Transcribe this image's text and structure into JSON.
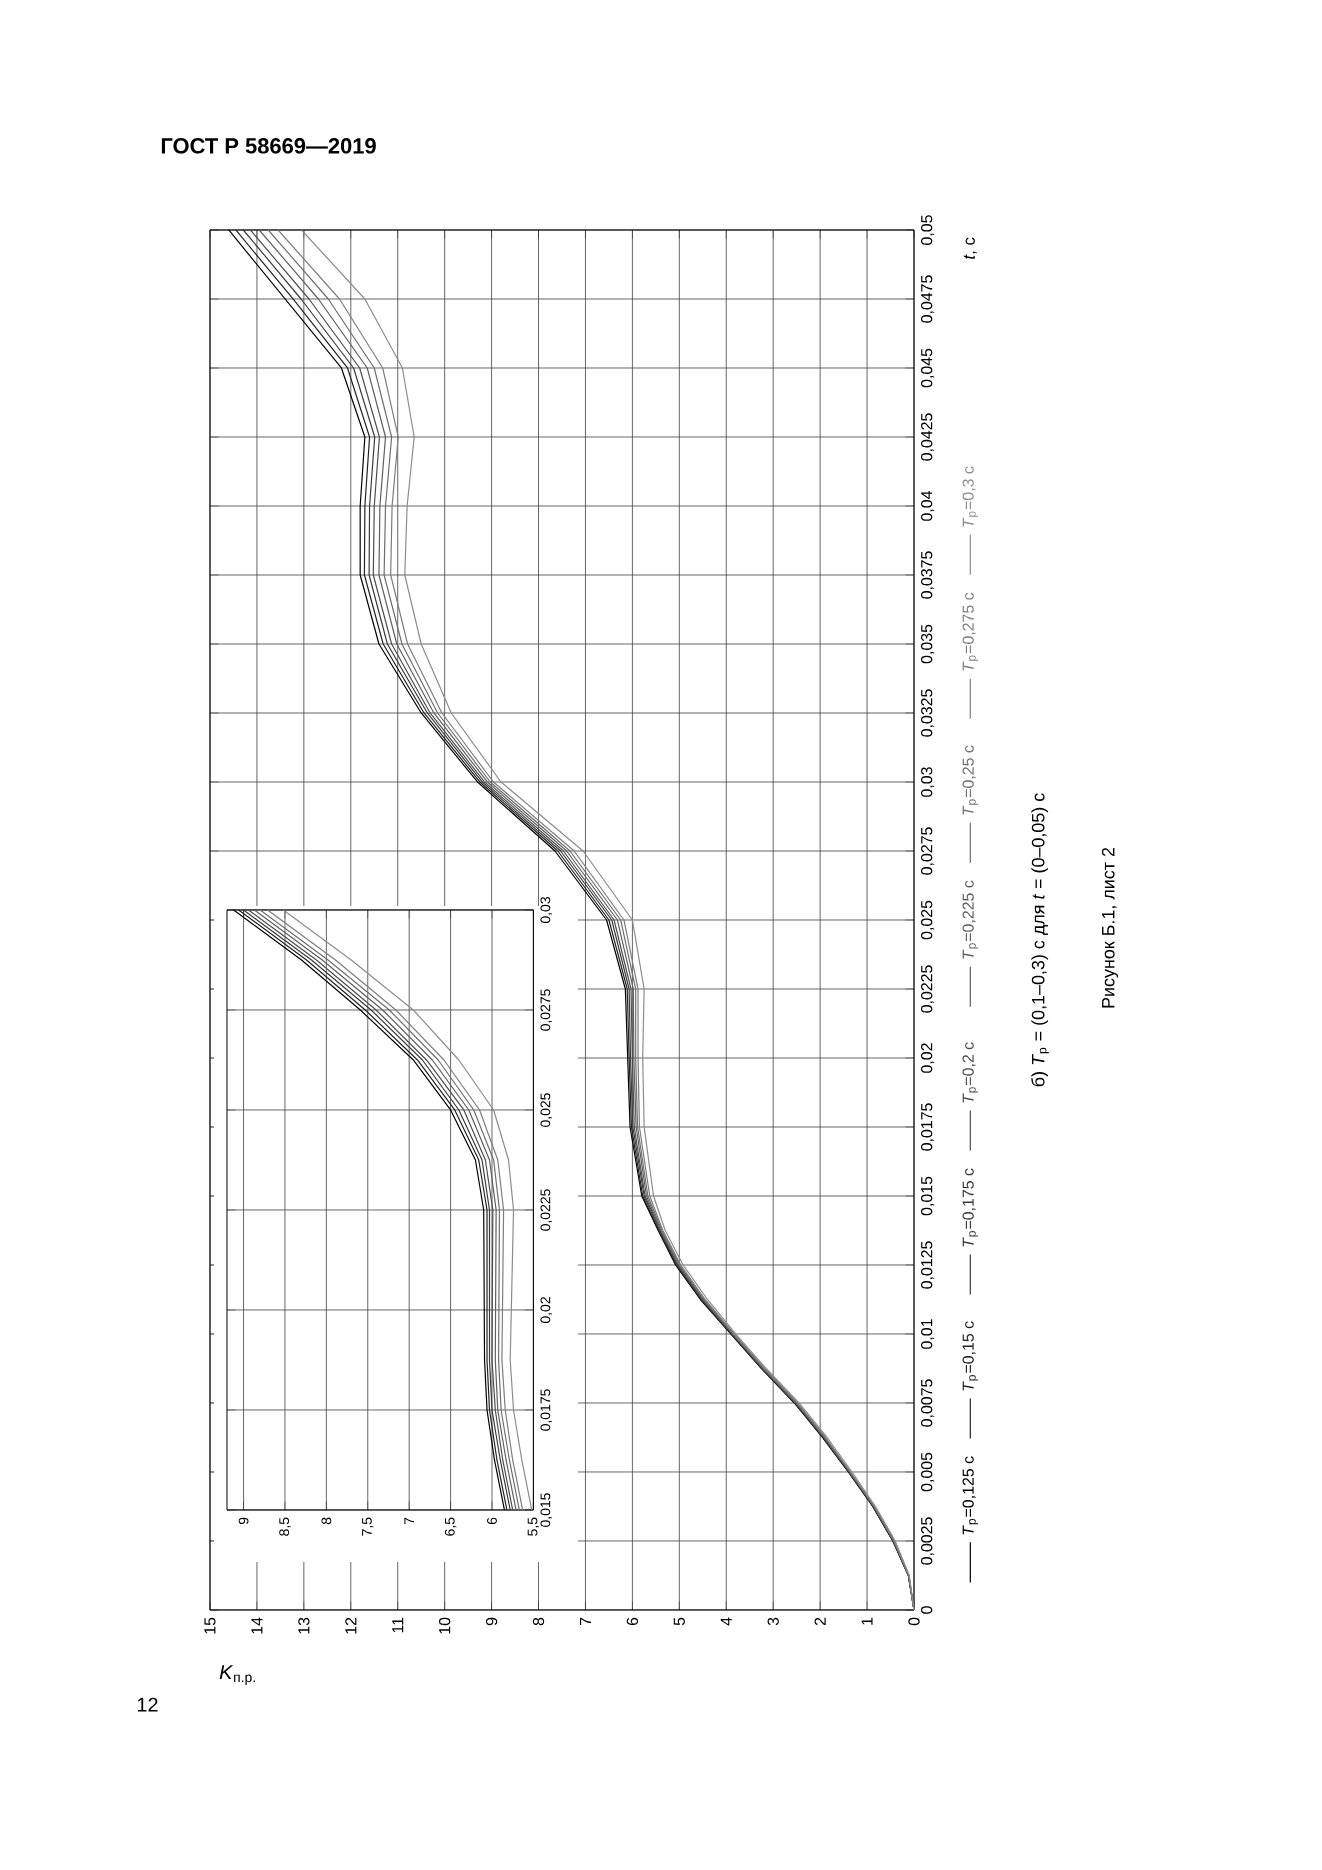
{
  "chart_data": [
    {
      "type": "line",
      "xlabel": "*K*$_{п.р.}$",
      "ylabel": "*t*, с",
      "annotations": [
        "б) *T*$_{р}$ = (0,1–0,3) с для *t* = (0–0,05) с",
        "Рисунок Б.1, лист 2",
        "ГОСТ Р 58669—2019",
        "12"
      ],
      "series": [
        {
          "name": "*T*$_{р}$=0,125 с",
          "color": "#000000",
          "x": [
            0,
            0.12,
            0.45,
            0.88,
            1.4,
            1.95,
            2.55,
            3.25,
            3.9,
            4.55,
            5.08,
            5.45,
            5.8,
            6.05,
            6.1,
            6.15,
            6.55,
            7.65,
            9.3,
            10.5,
            11.4,
            11.8,
            11.8,
            11.7,
            12.2,
            13.4,
            14.6
          ],
          "values": [
            0,
            0.00125,
            0.0025,
            0.00375,
            0.005,
            0.00625,
            0.0075,
            0.00875,
            0.01,
            0.01125,
            0.0125,
            0.01375,
            0.015,
            0.0175,
            0.02,
            0.0225,
            0.025,
            0.0275,
            0.03,
            0.0325,
            0.035,
            0.0375,
            0.04,
            0.0425,
            0.045,
            0.0475,
            0.05
          ]
        },
        {
          "name": "*T*$_{р}$=0,15 с",
          "color": "#222222",
          "x": [
            0,
            0.12,
            0.45,
            0.87,
            1.39,
            1.94,
            2.54,
            3.24,
            3.89,
            4.54,
            5.06,
            5.44,
            5.78,
            6.02,
            6.07,
            6.11,
            6.5,
            7.59,
            9.25,
            10.44,
            11.31,
            11.71,
            11.7,
            11.6,
            12.07,
            13.23,
            14.45
          ],
          "values": [
            0,
            0.00125,
            0.0025,
            0.00375,
            0.005,
            0.00625,
            0.0075,
            0.00875,
            0.01,
            0.01125,
            0.0125,
            0.01375,
            0.015,
            0.0175,
            0.02,
            0.0225,
            0.025,
            0.0275,
            0.03,
            0.0325,
            0.035,
            0.0375,
            0.04,
            0.0425,
            0.045,
            0.0475,
            0.05
          ]
        },
        {
          "name": "*T*$_{р}$=0,175 с",
          "color": "#3a3a3a",
          "x": [
            0,
            0.12,
            0.44,
            0.87,
            1.38,
            1.93,
            2.53,
            3.23,
            3.88,
            4.52,
            5.05,
            5.42,
            5.75,
            5.99,
            6.04,
            6.07,
            6.44,
            7.53,
            9.2,
            10.37,
            11.22,
            11.61,
            11.6,
            11.49,
            11.94,
            13.06,
            14.29
          ],
          "values": [
            0,
            0.00125,
            0.0025,
            0.00375,
            0.005,
            0.00625,
            0.0075,
            0.00875,
            0.01,
            0.01125,
            0.0125,
            0.01375,
            0.015,
            0.0175,
            0.02,
            0.0225,
            0.025,
            0.0275,
            0.03,
            0.0325,
            0.035,
            0.0375,
            0.04,
            0.0425,
            0.045,
            0.0475,
            0.05
          ]
        },
        {
          "name": "*T*$_{р}$=0,2 с",
          "color": "#4d4d4d",
          "x": [
            0,
            0.11,
            0.44,
            0.86,
            1.38,
            1.92,
            2.52,
            3.22,
            3.87,
            4.51,
            5.03,
            5.41,
            5.73,
            5.96,
            6.0,
            6.03,
            6.39,
            7.47,
            9.15,
            10.31,
            11.13,
            11.52,
            11.5,
            11.39,
            11.81,
            12.89,
            14.14
          ],
          "values": [
            0,
            0.00125,
            0.0025,
            0.00375,
            0.005,
            0.00625,
            0.0075,
            0.00875,
            0.01,
            0.01125,
            0.0125,
            0.01375,
            0.015,
            0.0175,
            0.02,
            0.0225,
            0.025,
            0.0275,
            0.03,
            0.0325,
            0.035,
            0.0375,
            0.04,
            0.0425,
            0.045,
            0.0475,
            0.05
          ]
        },
        {
          "name": "*T*$_{р}$=0,225 с",
          "color": "#5e5e5e",
          "x": [
            0,
            0.11,
            0.43,
            0.85,
            1.37,
            1.91,
            2.51,
            3.21,
            3.86,
            4.49,
            5.01,
            5.39,
            5.7,
            5.92,
            5.97,
            5.98,
            6.32,
            7.4,
            9.09,
            10.23,
            11.02,
            11.4,
            11.38,
            11.26,
            11.65,
            12.69,
            13.95
          ],
          "values": [
            0,
            0.00125,
            0.0025,
            0.00375,
            0.005,
            0.00625,
            0.0075,
            0.00875,
            0.01,
            0.01125,
            0.0125,
            0.01375,
            0.015,
            0.0175,
            0.02,
            0.0225,
            0.025,
            0.0275,
            0.03,
            0.0325,
            0.035,
            0.0375,
            0.04,
            0.0425,
            0.045,
            0.0475,
            0.05
          ]
        },
        {
          "name": "*T*$_{р}$=0,25 с",
          "color": "#6e6e6e",
          "x": [
            0,
            0.11,
            0.42,
            0.85,
            1.36,
            1.9,
            2.5,
            3.2,
            3.85,
            4.47,
            4.99,
            5.37,
            5.67,
            5.89,
            5.93,
            5.93,
            6.25,
            7.33,
            9.03,
            10.15,
            10.91,
            11.29,
            11.26,
            11.13,
            11.5,
            12.48,
            13.76
          ],
          "values": [
            0,
            0.00125,
            0.0025,
            0.00375,
            0.005,
            0.00625,
            0.0075,
            0.00875,
            0.01,
            0.01125,
            0.0125,
            0.01375,
            0.015,
            0.0175,
            0.02,
            0.0225,
            0.025,
            0.0275,
            0.03,
            0.0325,
            0.035,
            0.0375,
            0.04,
            0.0425,
            0.045,
            0.0475,
            0.05
          ]
        },
        {
          "name": "*T*$_{р}$=0,275 с",
          "color": "#7d7d7d",
          "x": [
            0,
            0.11,
            0.42,
            0.84,
            1.35,
            1.88,
            2.48,
            3.18,
            3.83,
            4.45,
            4.97,
            5.35,
            5.63,
            5.85,
            5.88,
            5.88,
            6.18,
            7.24,
            8.96,
            10.06,
            10.79,
            11.15,
            11.12,
            10.99,
            11.32,
            12.24,
            13.55
          ],
          "values": [
            0,
            0.00125,
            0.0025,
            0.00375,
            0.005,
            0.00625,
            0.0075,
            0.00875,
            0.01,
            0.01125,
            0.0125,
            0.01375,
            0.015,
            0.0175,
            0.02,
            0.0225,
            0.025,
            0.0275,
            0.03,
            0.0325,
            0.035,
            0.0375,
            0.04,
            0.0425,
            0.045,
            0.0475,
            0.05
          ]
        },
        {
          "name": "*T*$_{р}$=0,3 с",
          "color": "#8c8c8c",
          "x": [
            0,
            0.1,
            0.4,
            0.82,
            1.32,
            1.85,
            2.45,
            3.15,
            3.8,
            4.4,
            4.92,
            5.3,
            5.55,
            5.75,
            5.78,
            5.75,
            6.0,
            7.05,
            8.8,
            9.86,
            10.5,
            10.85,
            10.8,
            10.65,
            10.9,
            11.7,
            13.05
          ],
          "values": [
            0,
            0.00125,
            0.0025,
            0.00375,
            0.005,
            0.00625,
            0.0075,
            0.00875,
            0.01,
            0.01125,
            0.0125,
            0.01375,
            0.015,
            0.0175,
            0.02,
            0.0225,
            0.025,
            0.0275,
            0.03,
            0.0325,
            0.035,
            0.0375,
            0.04,
            0.0425,
            0.045,
            0.0475,
            0.05
          ]
        }
      ],
      "xlim": [
        15,
        0
      ],
      "ylim": [
        0,
        0.05
      ],
      "xticks": [
        15,
        14,
        13,
        12,
        11,
        10,
        9,
        8,
        7,
        6,
        5,
        4,
        3,
        2,
        1,
        0
      ],
      "yticks": [
        0,
        {
          "value": 0.0025,
          "label": "0,0025"
        },
        {
          "value": 0.005,
          "label": "0,005"
        },
        {
          "value": 0.0075,
          "label": "0,0075"
        },
        {
          "value": 0.01,
          "label": "0,01"
        },
        {
          "value": 0.0125,
          "label": "0,0125"
        },
        {
          "value": 0.015,
          "label": "0,015"
        },
        {
          "value": 0.0175,
          "label": "0,0175"
        },
        {
          "value": 0.02,
          "label": "0,02"
        },
        {
          "value": 0.0225,
          "label": "0,0225"
        },
        {
          "value": 0.025,
          "label": "0,025"
        },
        {
          "value": 0.0275,
          "label": "0,0275"
        },
        {
          "value": 0.03,
          "label": "0,03"
        },
        {
          "value": 0.0325,
          "label": "0,0325"
        },
        {
          "value": 0.035,
          "label": "0,035"
        },
        {
          "value": 0.0375,
          "label": "0,0375"
        },
        {
          "value": 0.04,
          "label": "0,04"
        },
        {
          "value": 0.0425,
          "label": "0,0425"
        },
        {
          "value": 0.045,
          "label": "0,045"
        },
        {
          "value": 0.0475,
          "label": "0,0475"
        },
        {
          "value": 0.05,
          "label": "0,05"
        }
      ],
      "grid": true,
      "legend": "right",
      "marker": "none"
    },
    {
      "type": "line",
      "series": [
        {
          "color": "#000000",
          "x": [
            5.85,
            5.97,
            6.06,
            6.09,
            6.1,
            6.2,
            6.5,
            6.95,
            7.59,
            8.3,
            9.12
          ],
          "values": [
            0.015,
            0.01625,
            0.0175,
            0.01875,
            0.0225,
            0.02375,
            0.025,
            0.02625,
            0.0275,
            0.02875,
            0.03
          ]
        },
        {
          "color": "#222222",
          "x": [
            5.82,
            5.94,
            6.03,
            6.06,
            6.06,
            6.16,
            6.45,
            6.9,
            7.53,
            8.24,
            9.06
          ],
          "values": [
            0.015,
            0.01625,
            0.0175,
            0.01875,
            0.0225,
            0.02375,
            0.025,
            0.02625,
            0.0275,
            0.02875,
            0.03
          ]
        },
        {
          "color": "#3a3a3a",
          "x": [
            5.78,
            5.9,
            6.0,
            6.03,
            6.03,
            6.12,
            6.4,
            6.84,
            7.46,
            8.18,
            9.0
          ],
          "values": [
            0.015,
            0.01625,
            0.0175,
            0.01875,
            0.0225,
            0.02375,
            0.025,
            0.02625,
            0.0275,
            0.02875,
            0.03
          ]
        },
        {
          "color": "#4d4d4d",
          "x": [
            5.75,
            5.87,
            5.96,
            6.0,
            5.99,
            6.08,
            6.34,
            6.79,
            7.4,
            8.12,
            8.94
          ],
          "values": [
            0.015,
            0.01625,
            0.0175,
            0.01875,
            0.0225,
            0.02375,
            0.025,
            0.02625,
            0.0275,
            0.02875,
            0.03
          ]
        },
        {
          "color": "#5e5e5e",
          "x": [
            5.71,
            5.83,
            5.93,
            5.96,
            5.95,
            6.03,
            6.28,
            6.72,
            7.32,
            8.05,
            8.87
          ],
          "values": [
            0.015,
            0.01625,
            0.0175,
            0.01875,
            0.0225,
            0.02375,
            0.025,
            0.02625,
            0.0275,
            0.02875,
            0.03
          ]
        },
        {
          "color": "#6e6e6e",
          "x": [
            5.67,
            5.79,
            5.89,
            5.92,
            5.91,
            5.98,
            6.22,
            6.65,
            7.24,
            7.98,
            8.8
          ],
          "values": [
            0.015,
            0.01625,
            0.0175,
            0.01875,
            0.0225,
            0.02375,
            0.025,
            0.02625,
            0.0275,
            0.02875,
            0.03
          ]
        },
        {
          "color": "#7d7d7d",
          "x": [
            5.63,
            5.75,
            5.84,
            5.88,
            5.86,
            5.93,
            6.15,
            6.58,
            7.16,
            7.89,
            8.71
          ],
          "values": [
            0.015,
            0.01625,
            0.0175,
            0.01875,
            0.0225,
            0.02375,
            0.025,
            0.02625,
            0.0275,
            0.02875,
            0.03
          ]
        },
        {
          "color": "#8c8c8c",
          "x": [
            5.52,
            5.64,
            5.74,
            5.78,
            5.74,
            5.8,
            5.98,
            6.4,
            6.95,
            7.7,
            8.52
          ],
          "values": [
            0.015,
            0.01625,
            0.0175,
            0.01875,
            0.0225,
            0.02375,
            0.025,
            0.02625,
            0.0275,
            0.02875,
            0.03
          ]
        }
      ],
      "xlim": [
        9.2,
        5.5
      ],
      "ylim": [
        0.015,
        0.03
      ],
      "xticks": [
        9,
        {
          "value": 8.5,
          "label": "8,5"
        },
        8,
        {
          "value": 7.5,
          "label": "7,5"
        },
        7,
        {
          "value": 6.5,
          "label": "6,5"
        },
        6,
        {
          "value": 5.5,
          "label": "5,5"
        }
      ],
      "yticks": [
        {
          "value": 0.015,
          "label": "0,015"
        },
        {
          "value": 0.0175,
          "label": "0,0175"
        },
        {
          "value": 0.02,
          "label": "0,02"
        },
        {
          "value": 0.0225,
          "label": "0,0225"
        },
        {
          "value": 0.025,
          "label": "0,025"
        },
        {
          "value": 0.0275,
          "label": "0,0275"
        },
        {
          "value": 0.03,
          "label": "0,03"
        }
      ],
      "grid": true,
      "marker": "none"
    }
  ]
}
